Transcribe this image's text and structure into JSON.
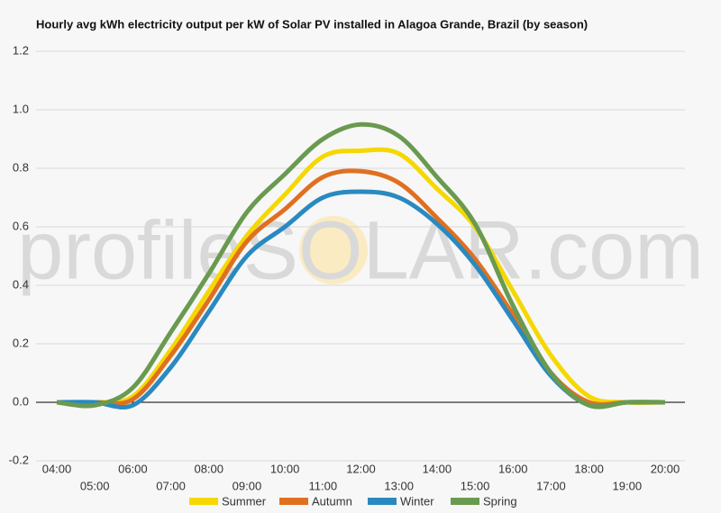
{
  "chart_data": {
    "type": "line",
    "title": "Hourly avg kWh electricity output per kW of Solar PV installed in Alagoa Grande, Brazil (by season)",
    "watermark": "profileSOLAR.com",
    "categories": [
      "04:00",
      "05:00",
      "06:00",
      "07:00",
      "08:00",
      "09:00",
      "10:00",
      "11:00",
      "12:00",
      "13:00",
      "14:00",
      "15:00",
      "16:00",
      "17:00",
      "18:00",
      "19:00",
      "20:00"
    ],
    "series": [
      {
        "name": "Summer",
        "color": "#f5d800",
        "values": [
          0,
          0,
          0.02,
          0.18,
          0.38,
          0.57,
          0.71,
          0.84,
          0.86,
          0.85,
          0.73,
          0.6,
          0.38,
          0.16,
          0.02,
          0,
          0
        ]
      },
      {
        "name": "Autumn",
        "color": "#e07020",
        "values": [
          0,
          0,
          0.01,
          0.16,
          0.35,
          0.55,
          0.66,
          0.77,
          0.79,
          0.75,
          0.63,
          0.49,
          0.3,
          0.1,
          0,
          0,
          0
        ]
      },
      {
        "name": "Winter",
        "color": "#2a8ac0",
        "values": [
          0,
          0,
          -0.01,
          0.12,
          0.31,
          0.5,
          0.6,
          0.7,
          0.72,
          0.7,
          0.61,
          0.47,
          0.28,
          0.09,
          -0.01,
          0,
          0
        ]
      },
      {
        "name": "Spring",
        "color": "#6a9a50",
        "values": [
          0,
          -0.01,
          0.05,
          0.24,
          0.44,
          0.65,
          0.78,
          0.9,
          0.95,
          0.91,
          0.77,
          0.61,
          0.33,
          0.1,
          -0.01,
          0,
          0
        ]
      }
    ],
    "ylim": [
      -0.2,
      1.2
    ],
    "yticks": [
      -0.2,
      {
        "value": 0,
        "label": "0.0"
      },
      0.2,
      0.4,
      0.6,
      0.8,
      {
        "value": 1,
        "label": "1.0"
      },
      1.2
    ],
    "grid": true,
    "legend": "bottom"
  }
}
